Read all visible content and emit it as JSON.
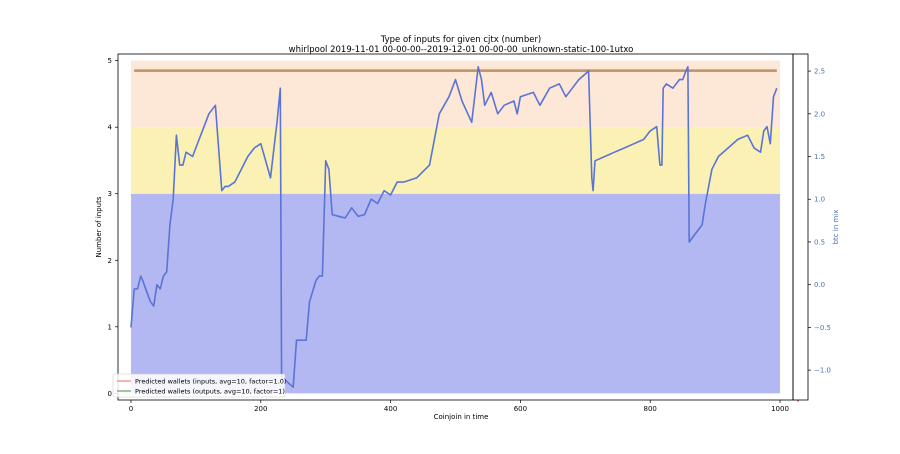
{
  "chart_data": {
    "type": "bar+line",
    "title": "Type of inputs for given cjtx (number)",
    "subtitle": "whirlpool 2019-11-01 00-00-00--2019-12-01 00-00-00_unknown-static-100-1utxo",
    "xlabel": "Coinjoin in time",
    "ylabel": "Number of inputs",
    "ylabel_right": "btc in mix",
    "xlim": [
      -20,
      1020
    ],
    "ylim": [
      -0.1,
      5.1
    ],
    "ylim_right": [
      -1.35,
      2.7
    ],
    "x_ticks": [
      "0",
      "200",
      "400",
      "600",
      "800",
      "1000"
    ],
    "y_ticks": [
      "0",
      "1",
      "2",
      "3",
      "4",
      "5"
    ],
    "y_right_ticks": [
      "−1.0",
      "−0.5",
      "0.0",
      "0.5",
      "1.0",
      "1.5",
      "2.0",
      "2.5"
    ],
    "stacked_bars": {
      "n_coinjoins": 1000,
      "layers": [
        {
          "from": 0,
          "to": 3,
          "color": "#b3b8f2"
        },
        {
          "from": 3,
          "to": 4,
          "color": "#fbf1b4"
        },
        {
          "from": 4,
          "to": 5,
          "color": "#fde7d7"
        }
      ]
    },
    "legend": {
      "position": "lower-left",
      "items": [
        {
          "label": "Predicted wallets (inputs, avg=10, factor=1.0)",
          "color": "#f08080"
        },
        {
          "label": "Predicted wallets (outputs, avg=10, factor=1)",
          "color": "#5fa35f"
        }
      ]
    },
    "series": [
      {
        "axis": "left",
        "color": "#5fa35f",
        "x": [
          5,
          995
        ],
        "values": [
          4.84,
          4.84
        ]
      },
      {
        "axis": "left",
        "color": "#d9623b",
        "x": [
          5,
          995
        ],
        "values": [
          4.86,
          4.86
        ]
      },
      {
        "axis": "right",
        "color": "#5a74d6",
        "x": [
          0,
          5,
          10,
          15,
          18,
          25,
          30,
          35,
          40,
          45,
          50,
          55,
          60,
          65,
          70,
          75,
          78,
          80,
          85,
          95,
          105,
          110,
          120,
          130,
          140,
          145,
          150,
          160,
          180,
          190,
          200,
          215,
          225,
          230,
          232,
          235,
          250,
          255,
          270,
          275,
          285,
          290,
          295,
          300,
          305,
          310,
          320,
          330,
          340,
          350,
          360,
          370,
          380,
          390,
          400,
          410,
          420,
          440,
          460,
          475,
          490,
          500,
          510,
          525,
          535,
          540,
          545,
          555,
          565,
          575,
          590,
          595,
          600,
          620,
          630,
          645,
          660,
          670,
          680,
          690,
          705,
          710,
          712,
          715,
          730,
          745,
          760,
          775,
          790,
          800,
          810,
          815,
          818,
          820,
          825,
          835,
          845,
          850,
          855,
          858,
          860,
          870,
          880,
          885,
          895,
          905,
          920,
          935,
          950,
          960,
          970,
          975,
          980,
          985,
          990,
          995
        ],
        "values": [
          -0.5,
          -0.05,
          -0.05,
          0.1,
          0.05,
          -0.1,
          -0.2,
          -0.25,
          0.0,
          -0.05,
          0.1,
          0.15,
          0.7,
          1.0,
          1.75,
          1.4,
          1.4,
          1.4,
          1.55,
          1.5,
          1.7,
          1.8,
          2.0,
          2.1,
          1.1,
          1.15,
          1.15,
          1.2,
          1.5,
          1.6,
          1.65,
          1.25,
          1.9,
          2.3,
          -1.1,
          -1.1,
          -1.2,
          -0.65,
          -0.65,
          -0.2,
          0.05,
          0.1,
          0.1,
          1.45,
          1.35,
          0.82,
          0.8,
          0.78,
          0.9,
          0.8,
          0.82,
          1.0,
          0.95,
          1.1,
          1.05,
          1.2,
          1.2,
          1.25,
          1.4,
          2.0,
          2.2,
          2.4,
          2.15,
          1.9,
          2.55,
          2.4,
          2.1,
          2.25,
          2.0,
          2.1,
          2.15,
          2.0,
          2.2,
          2.25,
          2.1,
          2.3,
          2.35,
          2.2,
          2.3,
          2.4,
          2.5,
          1.25,
          1.1,
          1.45,
          1.5,
          1.55,
          1.6,
          1.65,
          1.7,
          1.8,
          1.85,
          1.4,
          1.4,
          2.3,
          2.35,
          2.3,
          2.4,
          2.4,
          2.5,
          2.55,
          0.5,
          0.6,
          0.7,
          0.95,
          1.35,
          1.5,
          1.6,
          1.7,
          1.75,
          1.6,
          1.55,
          1.8,
          1.85,
          1.65,
          2.2,
          2.3
        ]
      }
    ]
  }
}
